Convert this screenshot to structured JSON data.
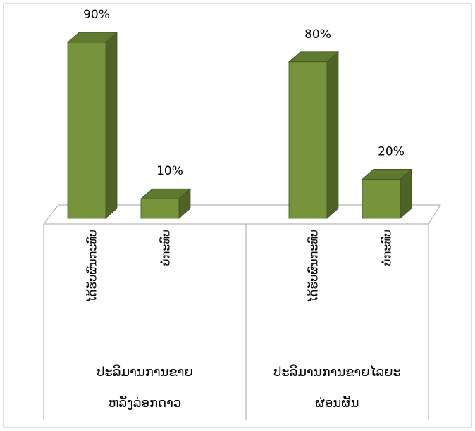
{
  "chart_data": {
    "type": "bar",
    "three_d": true,
    "grid": false,
    "legend": "none",
    "ylim": [
      0,
      100
    ],
    "groups": [
      {
        "label_lines": [
          "ປະລິມານການຂາຍ",
          "ຫລັງລ່ອກດາວ"
        ],
        "categories": [
          "ໄດ້ຮັບຜົນກະທົບ",
          "ບໍ່ກະທົບ"
        ],
        "values": [
          90,
          10
        ],
        "value_labels": [
          "90%",
          "10%"
        ]
      },
      {
        "label_lines": [
          "ປະລິມານການຂາຍໄລຍະ",
          "ຜ່ອນຜັນ"
        ],
        "categories": [
          "ໄດ້ຮັບຜົນກະທົບ",
          "ບໍ່ກະທົບ"
        ],
        "values": [
          80,
          20
        ],
        "value_labels": [
          "80%",
          "20%"
        ]
      }
    ],
    "colors": {
      "bar_front": "#77933c",
      "bar_side": "#4f6228",
      "bar_top": "#5f7a2f",
      "bar_edge": "#3f5020",
      "frame": "#a6a6a6"
    }
  }
}
